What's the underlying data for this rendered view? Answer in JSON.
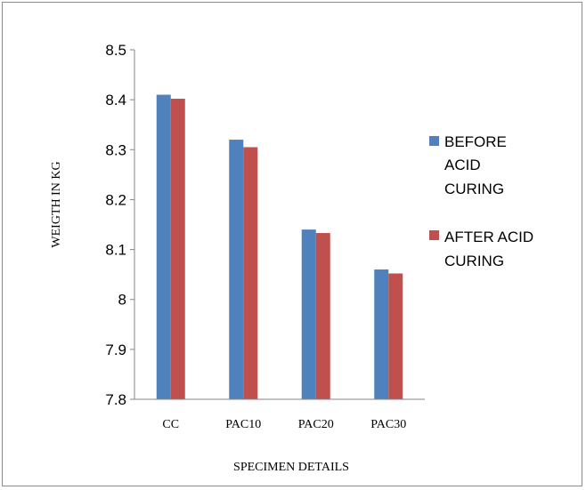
{
  "chart_data": {
    "type": "bar",
    "title": "",
    "xlabel": "SPECIMEN DETAILS",
    "ylabel": "WEIGTH IN KG",
    "categories": [
      "CC",
      "PAC10",
      "PAC20",
      "PAC30"
    ],
    "series": [
      {
        "name": "BEFORE ACID CURING",
        "legend_lines": [
          "BEFORE",
          "ACID",
          "CURING"
        ],
        "color": "#4f81bd",
        "values": [
          8.41,
          8.32,
          8.14,
          8.06
        ]
      },
      {
        "name": "AFTER ACID CURING",
        "legend_lines": [
          "AFTER ACID",
          "CURING"
        ],
        "color": "#c0504d",
        "values": [
          8.402,
          8.305,
          8.133,
          8.052
        ]
      }
    ],
    "yticks": [
      "7.8",
      "7.9",
      "8",
      "8.1",
      "8.2",
      "8.3",
      "8.4",
      "8.5"
    ],
    "ylim": [
      7.8,
      8.5
    ],
    "grid": false,
    "legend_position": "right"
  }
}
